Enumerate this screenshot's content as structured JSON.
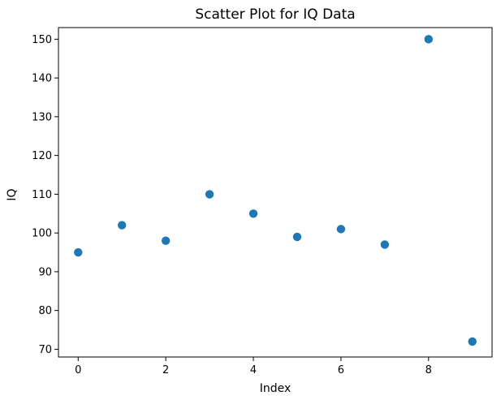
{
  "chart_data": {
    "type": "scatter",
    "title": "Scatter Plot for IQ Data",
    "xlabel": "Index",
    "ylabel": "IQ",
    "x": [
      0,
      1,
      2,
      3,
      4,
      5,
      6,
      7,
      8,
      9
    ],
    "y": [
      95,
      102,
      98,
      110,
      105,
      99,
      101,
      97,
      150,
      72
    ],
    "xlim": [
      -0.45,
      9.45
    ],
    "ylim": [
      68,
      153
    ],
    "xticks": [
      0,
      2,
      4,
      6,
      8
    ],
    "yticks": [
      70,
      80,
      90,
      100,
      110,
      120,
      130,
      140,
      150
    ],
    "grid": false,
    "marker_color": "#1f77b4"
  }
}
